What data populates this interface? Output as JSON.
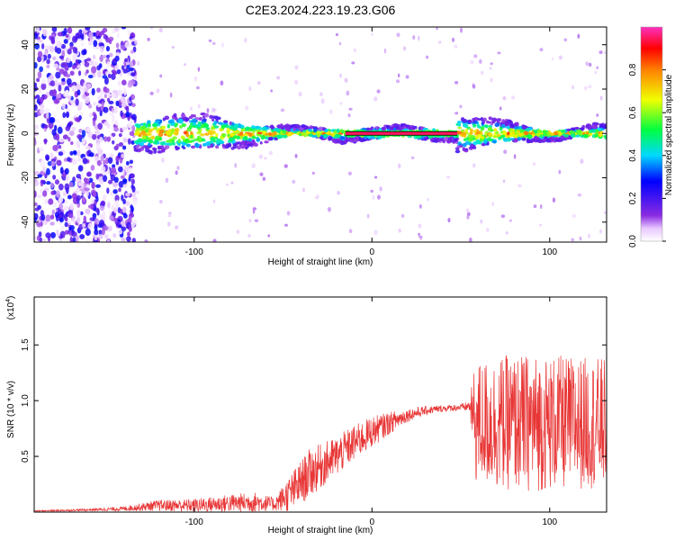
{
  "figure_title": "C2E3.2024.223.19.23.G06",
  "chart_data": [
    {
      "type": "heatmap",
      "panel": "top",
      "xlabel": "Height of straight line (km)",
      "ylabel": "Frequency (Hz)",
      "xlim": [
        -190,
        132
      ],
      "ylim": [
        -49,
        48
      ],
      "xticks": [
        -100,
        0,
        100
      ],
      "xtick_labels": [
        "-100",
        "0",
        "100"
      ],
      "yticks": [
        -40,
        -20,
        0,
        20,
        40
      ],
      "ytick_labels": [
        "-40",
        "-20",
        "0",
        "20",
        "40"
      ],
      "description_series": [
        {
          "name": "noise_region",
          "x_range": [
            -190,
            -133
          ],
          "freq_range": [
            -49,
            48
          ],
          "amplitude_range": [
            0.02,
            0.3
          ]
        },
        {
          "name": "signal_band",
          "x_range": [
            -133,
            132
          ],
          "center_freq": 0,
          "amplitude_range": [
            0.2,
            0.9
          ]
        },
        {
          "name": "clean_tone",
          "x_range": [
            -15,
            48
          ],
          "freq": 0,
          "amplitude": 0.95
        }
      ],
      "colorbar": {
        "label": "Normalized spectral amplitude",
        "range": [
          0,
          1
        ],
        "ticks": [
          0.0,
          0.2,
          0.4,
          0.6,
          0.8
        ],
        "tick_labels": [
          "0.0",
          "0.2",
          "0.4",
          "0.6",
          "0.8"
        ]
      }
    },
    {
      "type": "line",
      "panel": "bottom",
      "xlabel": "Height of straight line (km)",
      "ylabel": "SNR (10 * v/v)",
      "multiplier_label": "(x10",
      "multiplier_exp": "4",
      "xlim": [
        -190,
        132
      ],
      "ylim": [
        0,
        1.93
      ],
      "xticks": [
        -100,
        0,
        100
      ],
      "xtick_labels": [
        "-100",
        "0",
        "100"
      ],
      "yticks": [
        0.5,
        1.0,
        1.5
      ],
      "ytick_labels": [
        "0.5",
        "1.0",
        "1.5"
      ],
      "color": "#e83535",
      "series": [
        {
          "name": "SNR envelope",
          "x": [
            -190,
            -160,
            -140,
            -120,
            -100,
            -80,
            -65,
            -55,
            -45,
            -35,
            -28,
            -20,
            -10,
            0,
            10,
            20,
            30,
            40,
            50,
            55,
            58,
            70,
            90,
            110,
            132
          ],
          "mean": [
            0.01,
            0.02,
            0.03,
            0.06,
            0.06,
            0.08,
            0.09,
            0.07,
            0.18,
            0.35,
            0.42,
            0.5,
            0.62,
            0.72,
            0.8,
            0.87,
            0.91,
            0.93,
            0.94,
            0.95,
            0.8,
            0.8,
            0.8,
            0.8,
            0.8
          ],
          "amp": [
            0.005,
            0.01,
            0.02,
            0.05,
            0.06,
            0.08,
            0.09,
            0.06,
            0.18,
            0.22,
            0.2,
            0.18,
            0.16,
            0.14,
            0.1,
            0.06,
            0.04,
            0.03,
            0.03,
            0.05,
            0.55,
            0.6,
            0.62,
            0.6,
            0.58
          ]
        }
      ]
    }
  ]
}
